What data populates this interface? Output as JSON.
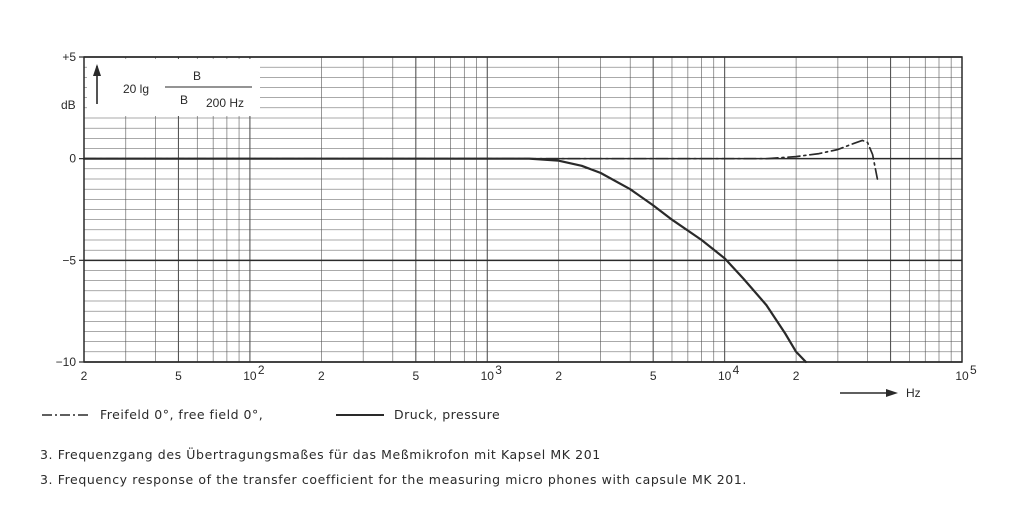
{
  "chart_data": {
    "type": "line",
    "y_formula": {
      "prefix": "20 lg",
      "numerator": "B",
      "denominator": "B",
      "denominator_sub": "200 Hz"
    },
    "ylabel": "dB",
    "xlabel": "Hz",
    "x_scale": "log",
    "xlim": [
      20,
      100000
    ],
    "ylim": [
      -10,
      5
    ],
    "grid": true,
    "y_ticks": [
      "+5",
      "0",
      "−5",
      "−10"
    ],
    "y_tick_values": [
      5,
      0,
      -5,
      -10
    ],
    "x_ticks": [
      {
        "label": "2",
        "value": 20
      },
      {
        "label": "5",
        "value": 50
      },
      {
        "base": "10",
        "exp": "2",
        "value": 100
      },
      {
        "label": "2",
        "value": 200
      },
      {
        "label": "5",
        "value": 500
      },
      {
        "base": "10",
        "exp": "3",
        "value": 1000
      },
      {
        "label": "2",
        "value": 2000
      },
      {
        "label": "5",
        "value": 5000
      },
      {
        "base": "10",
        "exp": "4",
        "value": 10000
      },
      {
        "label": "2",
        "value": 20000
      },
      {
        "base": "10",
        "exp": "5",
        "value": 100000
      }
    ],
    "series": [
      {
        "name": "Freifeld 0°,  free field 0°,",
        "style": "dash-dot",
        "x": [
          20,
          100,
          1000,
          1500,
          2000,
          3000,
          5000,
          8000,
          10000,
          15000,
          20000,
          25000,
          30000,
          35000,
          38000,
          40000,
          42000,
          44000
        ],
        "y": [
          0,
          0,
          0,
          0,
          0,
          0,
          0,
          0,
          0,
          0,
          0.1,
          0.25,
          0.45,
          0.75,
          0.9,
          0.8,
          0.2,
          -1
        ]
      },
      {
        "name": "Druck,  pressure",
        "style": "solid",
        "x": [
          20,
          100,
          1000,
          1500,
          2000,
          2500,
          3000,
          4000,
          5000,
          6000,
          8000,
          10000,
          12000,
          15000,
          18000,
          20000,
          22000
        ],
        "y": [
          0,
          0,
          0,
          0,
          -0.1,
          -0.35,
          -0.7,
          -1.5,
          -2.3,
          -3.0,
          -4.0,
          -4.9,
          -5.9,
          -7.2,
          -8.6,
          -9.5,
          -10
        ]
      }
    ]
  },
  "captions": {
    "german": "3. Frequenzgang des Übertragungsmaßes für das Meßmikrofon mit Kapsel MK 201",
    "english": "3. Frequency response of the transfer coefficient for the measuring micro phones with capsule MK 201."
  },
  "colors": {
    "ink": "#2a2a2a",
    "grid": "#555555"
  }
}
